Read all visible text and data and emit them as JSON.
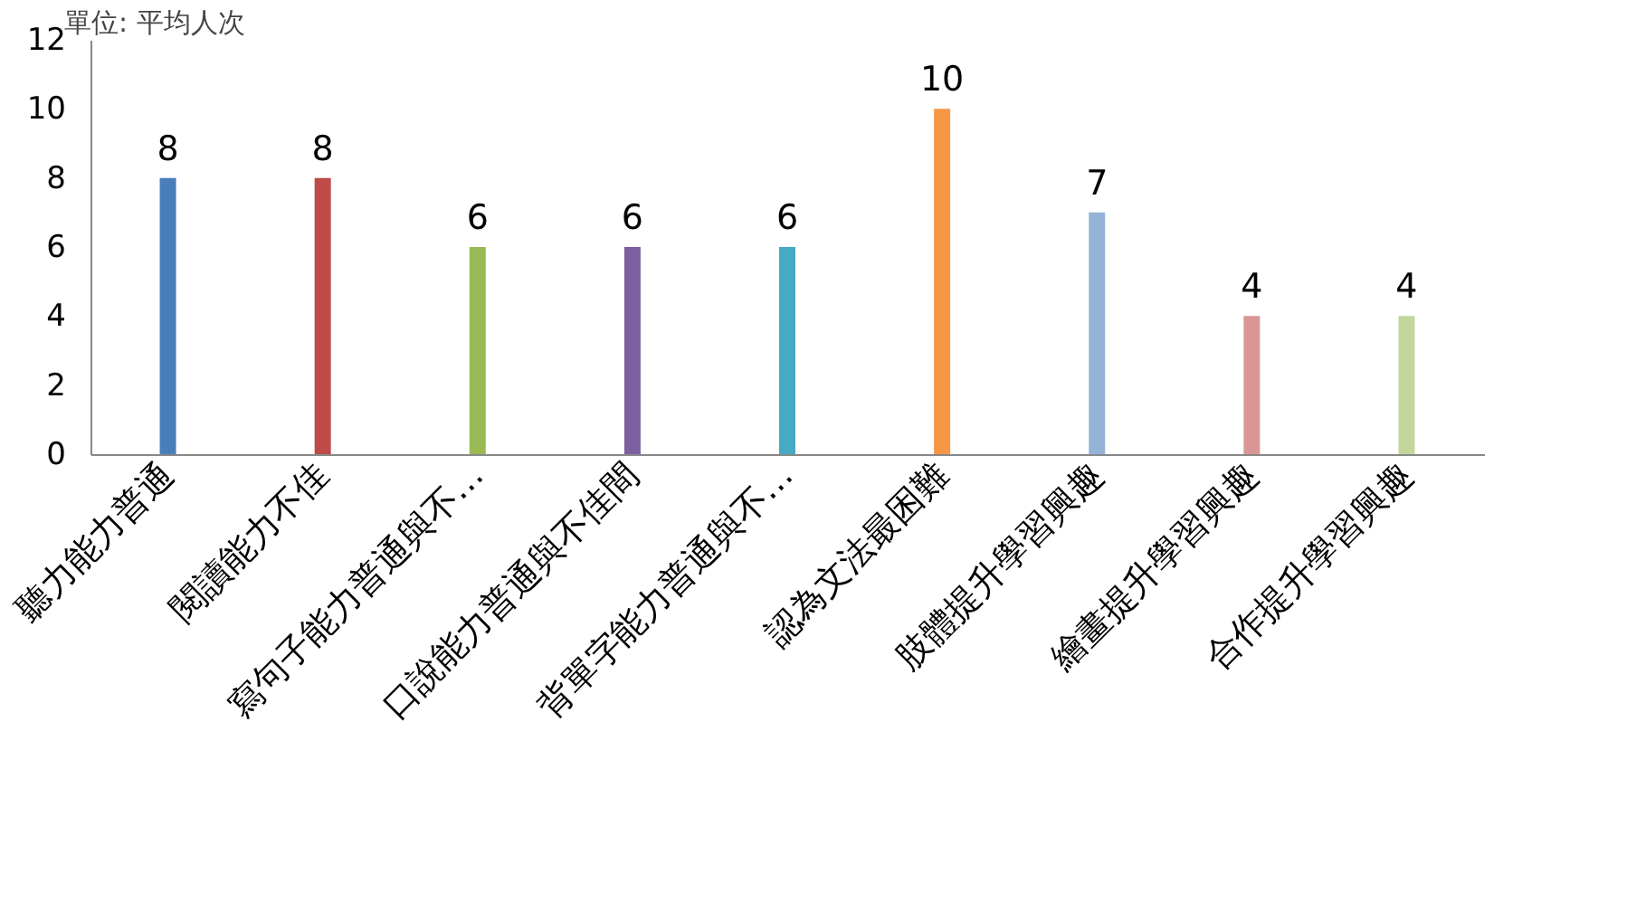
{
  "chart_data": {
    "type": "bar",
    "ylabel": "單位: 平均人次",
    "categories": [
      "聽力能力普通",
      "閱讀能力不佳",
      "寫句子能力普通與不…",
      "口說能力普通與不佳間",
      "背單字能力普通與不…",
      "認為文法最困難",
      "肢體提升學習興趣",
      "繪畫提升學習興趣",
      "合作提升學習興趣"
    ],
    "values": [
      8,
      8,
      6,
      6,
      6,
      10,
      7,
      4,
      4
    ],
    "colors": [
      "#4a7ebb",
      "#be4b48",
      "#98b954",
      "#7d60a0",
      "#46aac5",
      "#f79646",
      "#95b3d7",
      "#d99694",
      "#c3d69b"
    ],
    "ylim": [
      0,
      12
    ],
    "yticks": [
      0,
      2,
      4,
      6,
      8,
      10,
      12
    ],
    "grid": false,
    "legend": false,
    "data_labels": true
  }
}
